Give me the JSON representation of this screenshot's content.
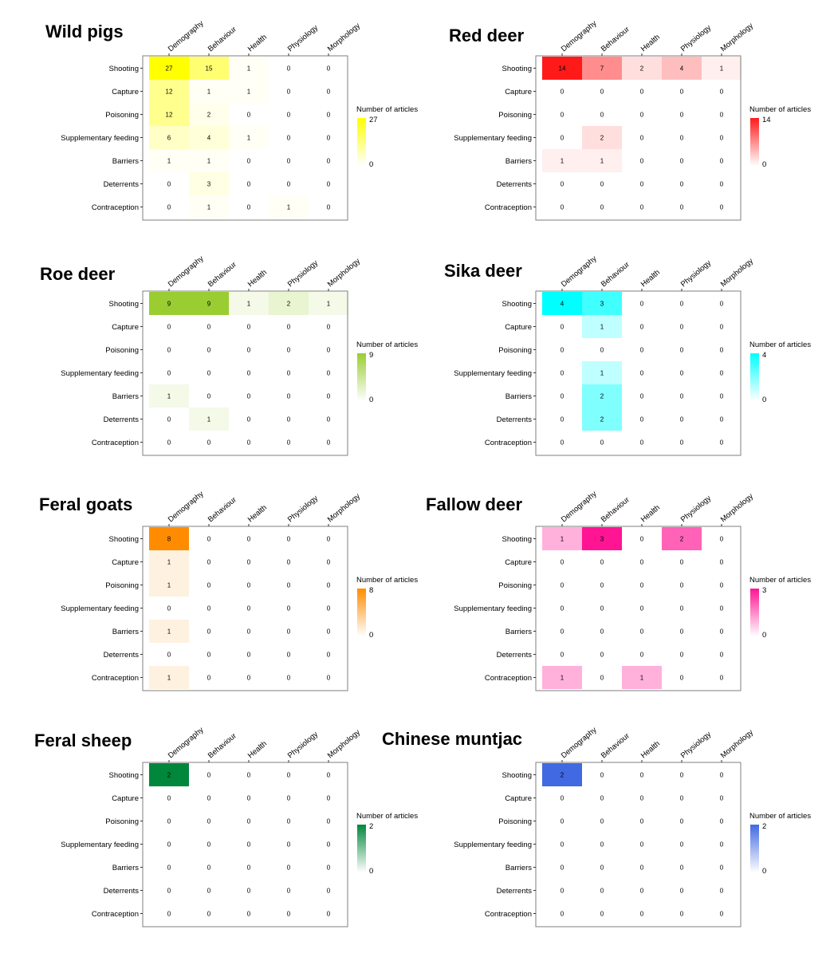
{
  "chart_data": {
    "type": "heatmap",
    "columns": [
      "Demography",
      "Behaviour",
      "Health",
      "Physiology",
      "Morphology"
    ],
    "rows": [
      "Shooting",
      "Capture",
      "Poisoning",
      "Supplementary feeding",
      "Barriers",
      "Deterrents",
      "Contraception"
    ],
    "legend_title": "Number of articles",
    "panels": [
      {
        "title": "Wild pigs",
        "color": "#ffff00",
        "max": 27,
        "min": 0,
        "values": [
          [
            27,
            15,
            1,
            0,
            0
          ],
          [
            12,
            1,
            1,
            0,
            0
          ],
          [
            12,
            2,
            0,
            0,
            0
          ],
          [
            6,
            4,
            1,
            0,
            0
          ],
          [
            1,
            1,
            0,
            0,
            0
          ],
          [
            0,
            3,
            0,
            0,
            0
          ],
          [
            0,
            1,
            0,
            1,
            0
          ]
        ]
      },
      {
        "title": "Red deer",
        "color": "#ff1a1a",
        "max": 14,
        "min": 0,
        "values": [
          [
            14,
            7,
            2,
            4,
            1
          ],
          [
            0,
            0,
            0,
            0,
            0
          ],
          [
            0,
            0,
            0,
            0,
            0
          ],
          [
            0,
            2,
            0,
            0,
            0
          ],
          [
            1,
            1,
            0,
            0,
            0
          ],
          [
            0,
            0,
            0,
            0,
            0
          ],
          [
            0,
            0,
            0,
            0,
            0
          ]
        ]
      },
      {
        "title": "Roe deer",
        "color": "#9acd32",
        "max": 9,
        "min": 0,
        "values": [
          [
            9,
            9,
            1,
            2,
            1
          ],
          [
            0,
            0,
            0,
            0,
            0
          ],
          [
            0,
            0,
            0,
            0,
            0
          ],
          [
            0,
            0,
            0,
            0,
            0
          ],
          [
            1,
            0,
            0,
            0,
            0
          ],
          [
            0,
            1,
            0,
            0,
            0
          ],
          [
            0,
            0,
            0,
            0,
            0
          ]
        ]
      },
      {
        "title": "Sika deer",
        "color": "#00ffff",
        "max": 4,
        "min": 0,
        "values": [
          [
            4,
            3,
            0,
            0,
            0
          ],
          [
            0,
            1,
            0,
            0,
            0
          ],
          [
            0,
            0,
            0,
            0,
            0
          ],
          [
            0,
            1,
            0,
            0,
            0
          ],
          [
            0,
            2,
            0,
            0,
            0
          ],
          [
            0,
            2,
            0,
            0,
            0
          ],
          [
            0,
            0,
            0,
            0,
            0
          ]
        ]
      },
      {
        "title": "Feral goats",
        "color": "#ff8c00",
        "max": 8,
        "min": 0,
        "values": [
          [
            8,
            0,
            0,
            0,
            0
          ],
          [
            1,
            0,
            0,
            0,
            0
          ],
          [
            1,
            0,
            0,
            0,
            0
          ],
          [
            0,
            0,
            0,
            0,
            0
          ],
          [
            1,
            0,
            0,
            0,
            0
          ],
          [
            0,
            0,
            0,
            0,
            0
          ],
          [
            1,
            0,
            0,
            0,
            0
          ]
        ]
      },
      {
        "title": "Fallow deer",
        "color": "#ff1493",
        "max": 3,
        "min": 0,
        "values": [
          [
            1,
            3,
            0,
            2,
            0
          ],
          [
            0,
            0,
            0,
            0,
            0
          ],
          [
            0,
            0,
            0,
            0,
            0
          ],
          [
            0,
            0,
            0,
            0,
            0
          ],
          [
            0,
            0,
            0,
            0,
            0
          ],
          [
            0,
            0,
            0,
            0,
            0
          ],
          [
            1,
            0,
            1,
            0,
            0
          ]
        ]
      },
      {
        "title": "Feral sheep",
        "color": "#00873c",
        "max": 2,
        "min": 0,
        "values": [
          [
            2,
            0,
            0,
            0,
            0
          ],
          [
            0,
            0,
            0,
            0,
            0
          ],
          [
            0,
            0,
            0,
            0,
            0
          ],
          [
            0,
            0,
            0,
            0,
            0
          ],
          [
            0,
            0,
            0,
            0,
            0
          ],
          [
            0,
            0,
            0,
            0,
            0
          ],
          [
            0,
            0,
            0,
            0,
            0
          ]
        ]
      },
      {
        "title": "Chinese muntjac",
        "color": "#4169e1",
        "max": 2,
        "min": 0,
        "values": [
          [
            2,
            0,
            0,
            0,
            0
          ],
          [
            0,
            0,
            0,
            0,
            0
          ],
          [
            0,
            0,
            0,
            0,
            0
          ],
          [
            0,
            0,
            0,
            0,
            0
          ],
          [
            0,
            0,
            0,
            0,
            0
          ],
          [
            0,
            0,
            0,
            0,
            0
          ],
          [
            0,
            0,
            0,
            0,
            0
          ]
        ]
      }
    ]
  }
}
